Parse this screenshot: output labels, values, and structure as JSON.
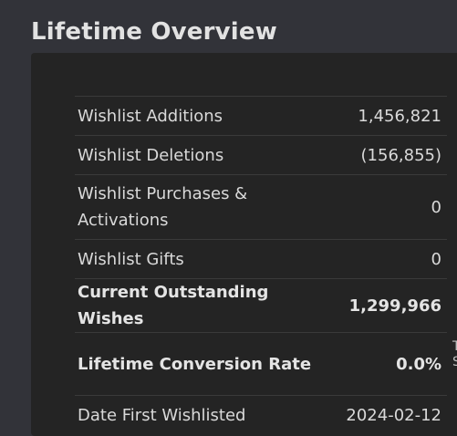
{
  "page": {
    "title": "Lifetime Overview"
  },
  "stats": {
    "rows": [
      {
        "label": "Wishlist Additions",
        "value": "1,456,821"
      },
      {
        "label": "Wishlist Deletions",
        "value": "(156,855)"
      },
      {
        "label": "Wishlist Purchases & Activations",
        "value": "0"
      },
      {
        "label": "Wishlist Gifts",
        "value": "0"
      },
      {
        "label": "Current Outstanding Wishes",
        "value": "1,299,966"
      },
      {
        "label": "Lifetime Conversion Rate",
        "value": "0.0%"
      },
      {
        "label": "Date First Wishlisted",
        "value": "2024-02-12"
      }
    ]
  },
  "clipped_text": {
    "line1": "T",
    "line2": "S"
  }
}
